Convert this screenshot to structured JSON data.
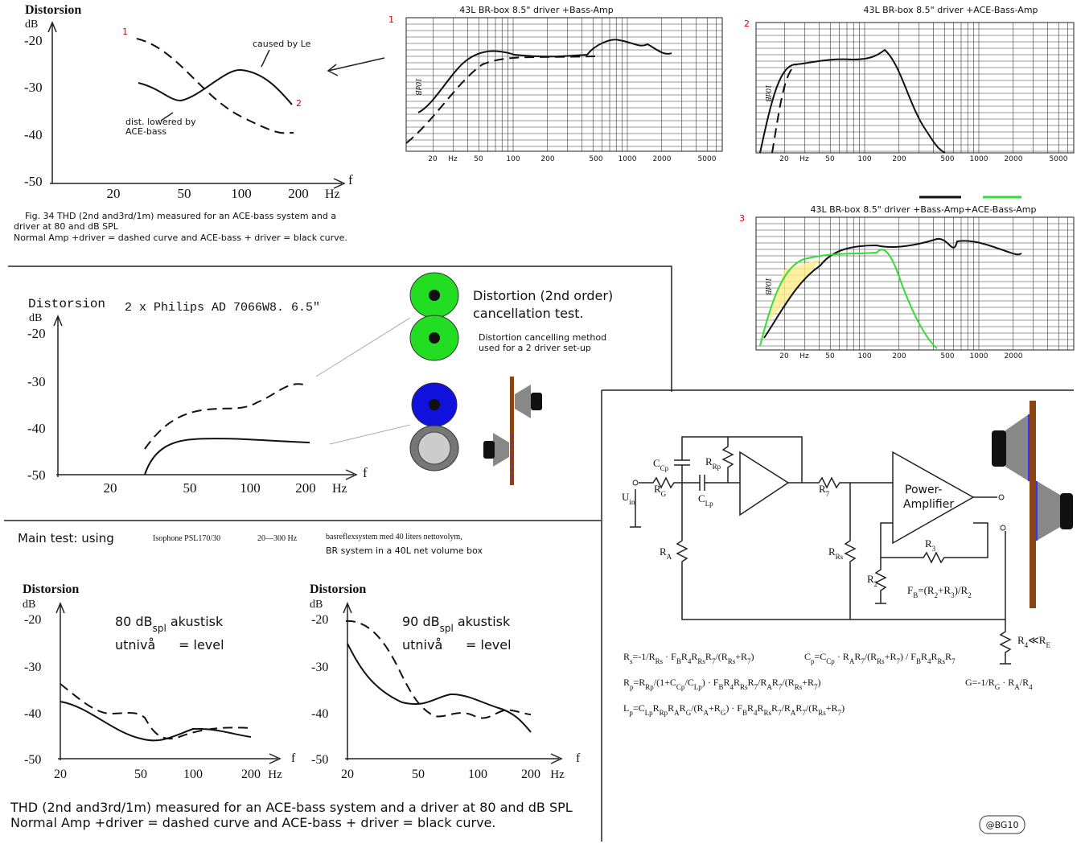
{
  "fig34": {
    "title": "Distorsion",
    "y_unit": "dB",
    "y_ticks": [
      "-20",
      "-30",
      "-40",
      "-50"
    ],
    "x_ticks": [
      "20",
      "50",
      "100",
      "200"
    ],
    "x_unit": "Hz",
    "x_axis": "f",
    "marker_1": "1",
    "marker_2": "2",
    "note_le": "caused by Le",
    "note_ace": [
      "dist. lowered by",
      "ACE-bass"
    ],
    "caption": [
      "Fig. 34 THD (2nd and3rd/1m) measured for an ACE-bass system and a",
      "driver at 80 and dB SPL",
      "Normal Amp +driver = dashed curve and ACE-bass + driver = black curve."
    ]
  },
  "response_1": {
    "marker": "1",
    "title": "43L BR-box 8.5\" driver +Bass-Amp",
    "scale": "10dB",
    "x_ticks": [
      "20",
      "Hz",
      "50",
      "100",
      "200",
      "500",
      "1000",
      "2000",
      "5000"
    ]
  },
  "response_2": {
    "marker": "2",
    "title": "43L BR-box 8.5\" driver +ACE-Bass-Amp",
    "scale": "10dB",
    "x_ticks": [
      "20",
      "Hz",
      "50",
      "100",
      "200",
      "500",
      "1000",
      "2000",
      "5000"
    ]
  },
  "response_3": {
    "marker": "3",
    "title": "43L BR-box 8.5\" driver +Bass-Amp+ACE-Bass-Amp",
    "scale": "10dB",
    "x_ticks": [
      "20",
      "Hz",
      "50",
      "100",
      "200",
      "500",
      "1000",
      "2000"
    ]
  },
  "cancellation": {
    "title": "Distorsion",
    "driver": "2 x Philips AD 7066W8. 6.5\"",
    "y_unit": "dB",
    "y_ticks": [
      "-20",
      "-30",
      "-40",
      "-50"
    ],
    "x_ticks": [
      "20",
      "50",
      "100",
      "200"
    ],
    "x_unit": "Hz",
    "x_axis": "f",
    "heading": [
      "Distortion (2nd order)",
      "cancellation test."
    ],
    "note": [
      "Distortion cancelling method",
      "used for a 2 driver set-up"
    ]
  },
  "main_test": {
    "label": "Main test: using",
    "driver": "Isophone PSL170/30",
    "range": "20—300 Hz",
    "box": "basreflexsystem med 40 liters nettovolym,",
    "box_en": "BR system in a 40L net volume box"
  },
  "chart_80": {
    "title": "Distorsion",
    "y_unit": "dB",
    "y_ticks": [
      "-20",
      "-30",
      "-40",
      "-50"
    ],
    "x_ticks": [
      "20",
      "50",
      "100",
      "200"
    ],
    "x_unit": "Hz",
    "x_axis": "f",
    "level": [
      "80 dB",
      "spl",
      " akustisk"
    ],
    "level_line": [
      "utnivå",
      "= level"
    ]
  },
  "chart_90": {
    "title": "Distorsion",
    "y_unit": "dB",
    "y_ticks": [
      "-20",
      "-30",
      "-40",
      "-50"
    ],
    "x_ticks": [
      "20",
      "50",
      "100",
      "200"
    ],
    "x_unit": "Hz",
    "x_axis": "f",
    "level": [
      "90 dB",
      "spl",
      " akustisk"
    ],
    "level_line": [
      "utnivå",
      "= level"
    ]
  },
  "caption": [
    "THD (2nd and3rd/1m) measured for an ACE-bass system and a driver at 80 and dB SPL",
    "Normal Amp +driver = dashed curve and ACE-bass + driver = black curve."
  ],
  "schematic": {
    "labels": [
      [
        "C",
        "Cp"
      ],
      [
        "R",
        "G"
      ],
      [
        "U",
        "in"
      ],
      [
        "C",
        "Lp"
      ],
      [
        "R",
        "Rp"
      ],
      [
        "R",
        "7"
      ],
      [
        "R",
        "A"
      ],
      [
        "R",
        "Rs"
      ],
      [
        "R",
        "2"
      ],
      [
        "R",
        "3"
      ],
      [
        "R",
        "4",
        "≪R",
        "E"
      ]
    ],
    "amplifier": [
      "Power-",
      "Amplifier"
    ],
    "fb": [
      "F",
      "B",
      "=(R",
      "2",
      "+R",
      "3",
      ")/R",
      "2"
    ],
    "formulas": [
      [
        "R",
        "s",
        "=-1/R",
        "Rs",
        " · F",
        "B",
        "R",
        "4",
        "R",
        "Rs",
        "R",
        "7",
        "/(R",
        "Rs",
        "+R",
        "7",
        ")"
      ],
      [
        "C",
        "p",
        "=C",
        "Cp",
        " · R",
        "A",
        "R",
        "7",
        "/(R",
        "Rs",
        "+R",
        "7",
        ") / F",
        "B",
        "R",
        "4",
        "R",
        "Rs",
        "R",
        "7"
      ],
      [
        "R",
        "p",
        "=R",
        "Rp",
        "/(1+C",
        "Cp",
        "/C",
        "Lp",
        ") · F",
        "B",
        "R",
        "4",
        "R",
        "Rs",
        "R",
        "7",
        "/R",
        "A",
        "R",
        "7",
        "/(R",
        "Rs",
        "+R",
        "7",
        ")"
      ],
      [
        "G=-1/R",
        "G",
        " · R",
        "A",
        "/R",
        "4"
      ],
      [
        "L",
        "p",
        "=C",
        "Lp",
        "R",
        "Rp",
        "R",
        "A",
        "R",
        "G",
        "/(R",
        "A",
        "+R",
        "G",
        ") · F",
        "B",
        "R",
        "4",
        "R",
        "Rs",
        "R",
        "7",
        "/R",
        "A",
        "R",
        "7",
        "/(R",
        "Rs",
        "+R",
        "7",
        ")"
      ]
    ]
  },
  "credit": "@BG10"
}
